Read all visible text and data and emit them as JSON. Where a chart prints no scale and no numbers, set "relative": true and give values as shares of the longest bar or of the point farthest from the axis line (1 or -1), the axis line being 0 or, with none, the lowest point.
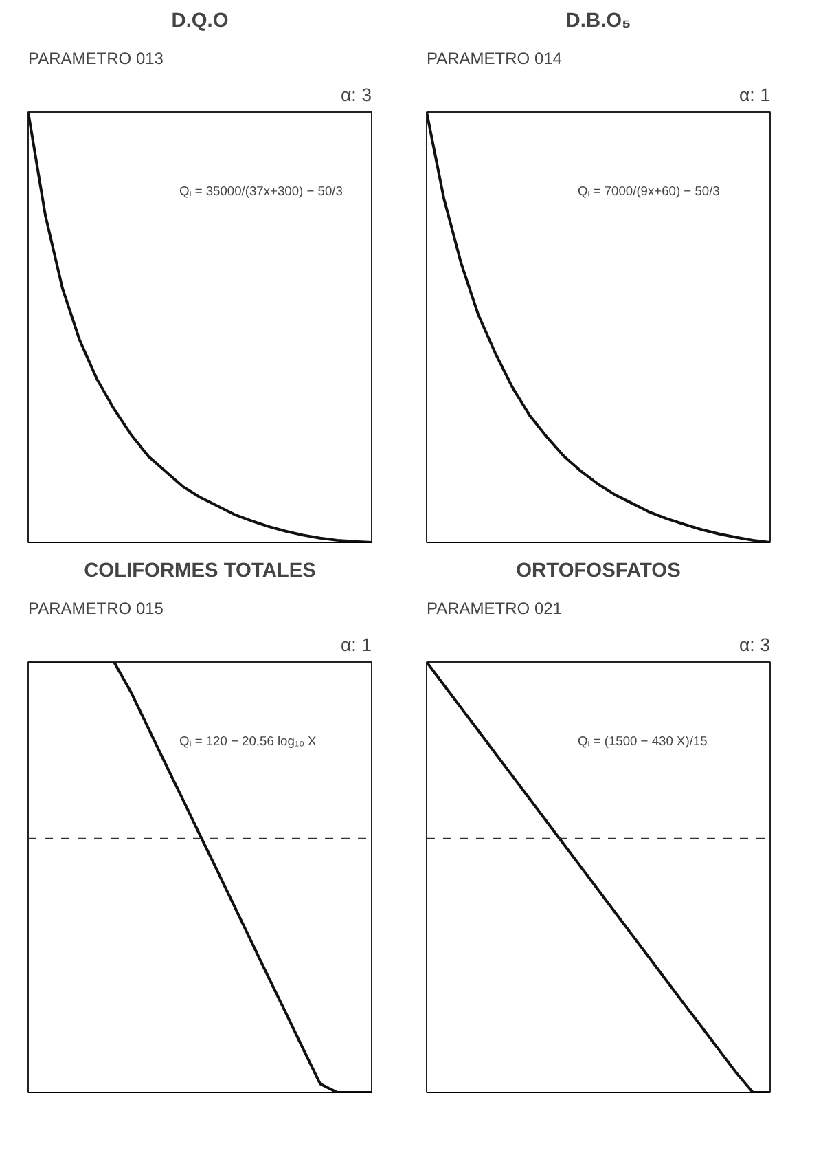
{
  "chart_data": [
    {
      "type": "line",
      "title": "D.Q.O",
      "subtitle": "PARAMETRO 013",
      "annotations": [
        "α: 3",
        "Qᵢ = 35000/(37x+300) − 50/3"
      ],
      "relative": true,
      "categories": [
        null,
        null,
        null,
        null,
        null,
        null,
        null,
        null,
        null,
        null,
        null,
        null,
        null,
        null,
        null,
        null,
        null,
        null,
        null,
        null,
        null
      ],
      "series": [
        {
          "color": "#111111",
          "values": [
            1.0,
            0.76,
            0.59,
            0.47,
            0.38,
            0.31,
            0.25,
            0.2,
            0.165,
            0.13,
            0.105,
            0.085,
            0.065,
            0.05,
            0.037,
            0.026,
            0.017,
            0.01,
            0.005,
            0.002,
            0.0
          ]
        }
      ]
    },
    {
      "type": "line",
      "title": "D.B.O₅",
      "subtitle": "PARAMETRO 014",
      "annotations": [
        "α: 1",
        "Qᵢ = 7000/(9x+60) − 50/3"
      ],
      "relative": true,
      "categories": [
        null,
        null,
        null,
        null,
        null,
        null,
        null,
        null,
        null,
        null,
        null,
        null,
        null,
        null,
        null,
        null,
        null,
        null,
        null,
        null,
        null
      ],
      "series": [
        {
          "color": "#111111",
          "values": [
            1.0,
            0.8,
            0.65,
            0.53,
            0.44,
            0.36,
            0.295,
            0.245,
            0.2,
            0.165,
            0.135,
            0.11,
            0.09,
            0.07,
            0.055,
            0.042,
            0.03,
            0.02,
            0.012,
            0.005,
            0.0
          ]
        }
      ]
    },
    {
      "type": "line",
      "title": "COLIFORMES TOTALES",
      "subtitle": "PARAMETRO 015",
      "annotations": [
        "α: 1",
        "Qᵢ = 120 − 20,56 log₁₀ X"
      ],
      "relative": true,
      "categories": [
        null,
        null,
        null,
        null,
        null,
        null,
        null,
        null,
        null,
        null,
        null,
        null,
        null,
        null,
        null,
        null,
        null,
        null,
        null,
        null,
        null
      ],
      "series": [
        {
          "color": "#111111",
          "values": [
            1.0,
            1.0,
            1.0,
            1.0,
            1.0,
            1.0,
            0.929,
            0.846,
            0.763,
            0.681,
            0.598,
            0.516,
            0.433,
            0.35,
            0.267,
            0.185,
            0.102,
            0.02,
            0.0,
            0.0,
            0.0
          ]
        }
      ],
      "ref_lines": [
        {
          "axis": "y",
          "value": 0.59,
          "label": null,
          "line_style": "dashed",
          "color": "#333333"
        }
      ]
    },
    {
      "type": "line",
      "title": "ORTOFOSFATOS",
      "subtitle": "PARAMETRO 021",
      "annotations": [
        "α: 3",
        "Qᵢ = (1500 − 430 X)/15"
      ],
      "relative": true,
      "categories": [
        null,
        null,
        null,
        null,
        null,
        null,
        null,
        null,
        null,
        null,
        null,
        null,
        null,
        null,
        null,
        null,
        null,
        null,
        null,
        null,
        null
      ],
      "series": [
        {
          "color": "#111111",
          "values": [
            1.0,
            0.947,
            0.894,
            0.841,
            0.788,
            0.735,
            0.682,
            0.629,
            0.576,
            0.523,
            0.47,
            0.417,
            0.364,
            0.311,
            0.258,
            0.205,
            0.153,
            0.1,
            0.047,
            0.0,
            0.0
          ]
        }
      ],
      "ref_lines": [
        {
          "axis": "y",
          "value": 0.59,
          "label": null,
          "line_style": "dashed",
          "color": "#333333"
        }
      ]
    }
  ]
}
